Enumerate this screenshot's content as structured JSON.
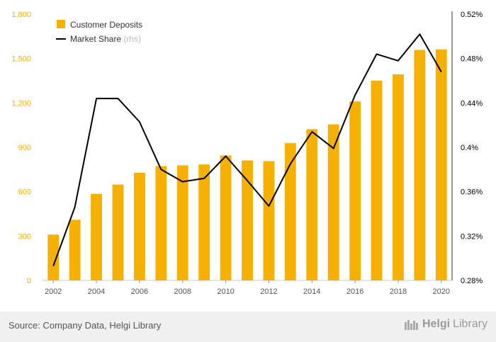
{
  "chart_data": {
    "type": "bar",
    "categories": [
      "2002",
      "2003",
      "2004",
      "2005",
      "2006",
      "2007",
      "2008",
      "2009",
      "2010",
      "2011",
      "2012",
      "2013",
      "2014",
      "2015",
      "2016",
      "2017",
      "2018",
      "2019",
      "2020"
    ],
    "series": [
      {
        "name": "Customer Deposits",
        "type": "bar",
        "axis": "left",
        "values": [
          310,
          410,
          585,
          648,
          728,
          773,
          778,
          784,
          845,
          811,
          806,
          928,
          1022,
          1055,
          1210,
          1350,
          1393,
          1558,
          1562
        ]
      },
      {
        "name": "Market Share",
        "type": "line",
        "axis": "right",
        "values": [
          0.293,
          0.346,
          0.444,
          0.444,
          0.423,
          0.38,
          0.369,
          0.372,
          0.392,
          0.37,
          0.347,
          0.385,
          0.414,
          0.399,
          0.447,
          0.484,
          0.478,
          0.502,
          0.468
        ]
      }
    ],
    "legend_suffix": "(rhs)",
    "y_left": {
      "min": 0,
      "max": 1800,
      "ticks": [
        0,
        300,
        600,
        900,
        1200,
        1500,
        1800
      ],
      "tick_labels": [
        "0",
        "300",
        "600",
        "900",
        "1,200",
        "1,500",
        "1,800"
      ]
    },
    "y_right": {
      "min": 0.28,
      "max": 0.52,
      "ticks": [
        0.28,
        0.32,
        0.36,
        0.4,
        0.44,
        0.48,
        0.52
      ],
      "tick_labels": [
        "0.28%",
        "0.32%",
        "0.36%",
        "0.4%",
        "0.44%",
        "0.48%",
        "0.52%"
      ]
    },
    "x_tick_labels": [
      "2002",
      "2004",
      "2006",
      "2008",
      "2010",
      "2012",
      "2014",
      "2016",
      "2018",
      "2020"
    ],
    "legend_position": "top-left",
    "colors": {
      "bar": "#f5b000",
      "line": "#000000",
      "left_axis": "#f5b000",
      "right_axis": "#000000"
    }
  },
  "footer": {
    "source": "Source: Company Data, Helgi Library",
    "brand_part1": "Helgi",
    "brand_part2": "Library"
  }
}
